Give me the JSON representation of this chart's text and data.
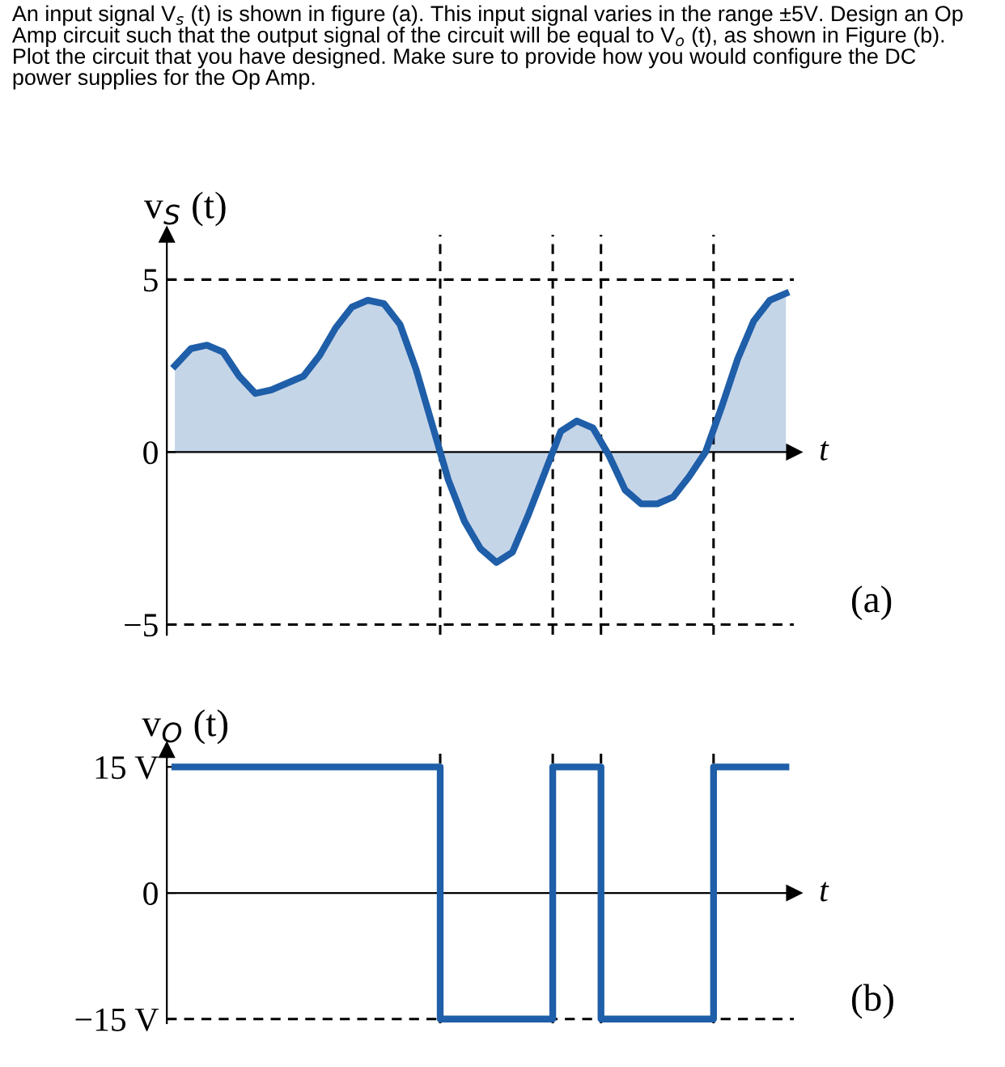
{
  "chart_data": [
    {
      "type": "area",
      "title": "An input signal V$_{s}$ (t) is shown in figure (a). This input signal varies in the range ±5V. Design an Op\nAmp circuit such that the output signal of the circuit will be equal to V$_{o}$ (t), as shown in Figure (b).\nPlot the circuit that you have designed. Make sure to provide how you would configure the DC\npower supplies for the Op Amp.",
      "ylabel": "v$_{S}$ (t)",
      "xlabel": "t",
      "annotations": [
        "(a)"
      ],
      "categories": [
        null,
        null,
        null,
        null,
        null,
        null,
        null,
        null,
        null,
        null,
        null,
        null,
        null,
        null,
        null,
        null,
        null,
        null,
        null,
        null,
        null,
        null,
        null,
        null,
        null,
        null,
        null,
        null,
        null,
        null,
        null,
        null,
        null,
        null,
        null,
        null,
        null,
        null,
        null
      ],
      "series": [
        {
          "color": "#1f5ea8",
          "values": [
            2.5,
            3.0,
            3.1,
            2.9,
            2.2,
            1.7,
            1.8,
            2.0,
            2.2,
            2.8,
            3.6,
            4.2,
            4.4,
            4.3,
            3.7,
            2.4,
            0.8,
            -0.8,
            -2.0,
            -2.8,
            -3.2,
            -2.9,
            -1.8,
            -0.6,
            0.6,
            0.9,
            0.7,
            -0.1,
            -1.1,
            -1.5,
            -1.5,
            -1.3,
            -0.7,
            0.0,
            1.3,
            2.7,
            3.8,
            4.4,
            4.6
          ]
        }
      ],
      "ylim": [
        -5.3,
        6.3
      ],
      "yticks": [
        5,
        0,
        {
          "value": -5,
          "label": "−5"
        }
      ],
      "grid": false,
      "ref_lines": [
        {
          "axis": "y",
          "value": 5,
          "line_style": "dashed",
          "color": "#000000"
        },
        {
          "axis": "y",
          "value": -5,
          "line_style": "dashed",
          "color": "#000000"
        }
      ]
    },
    {
      "type": "step",
      "ylabel": "v$_{O}$ (t)",
      "xlabel": "t",
      "annotations": [
        "(b)"
      ],
      "categories": [
        null,
        null,
        null,
        null,
        null,
        null,
        null,
        null,
        null,
        null,
        null,
        null,
        null,
        null,
        null,
        null,
        null,
        null,
        null,
        null,
        null,
        null,
        null,
        null,
        null,
        null,
        null,
        null,
        null,
        null,
        null,
        null,
        null,
        null,
        null,
        null,
        null,
        null,
        null
      ],
      "series": [
        {
          "color": "#1f5ea8",
          "values": [
            15,
            15,
            15,
            15,
            15,
            15,
            15,
            15,
            15,
            15,
            15,
            15,
            15,
            15,
            15,
            15,
            15,
            -15,
            -15,
            -15,
            -15,
            -15,
            -15,
            -15,
            15,
            15,
            15,
            -15,
            -15,
            -15,
            -15,
            -15,
            -15,
            -15,
            15,
            15,
            15,
            15,
            15
          ]
        }
      ],
      "ylim": [
        -15.5,
        17
      ],
      "yticks": [
        {
          "value": 15,
          "label": "15 V"
        },
        0,
        {
          "value": -15,
          "label": "−15 V"
        }
      ],
      "grid": false,
      "ref_lines": [
        {
          "axis": "y",
          "value": -15,
          "line_style": "dashed",
          "color": "#000000"
        }
      ]
    }
  ]
}
